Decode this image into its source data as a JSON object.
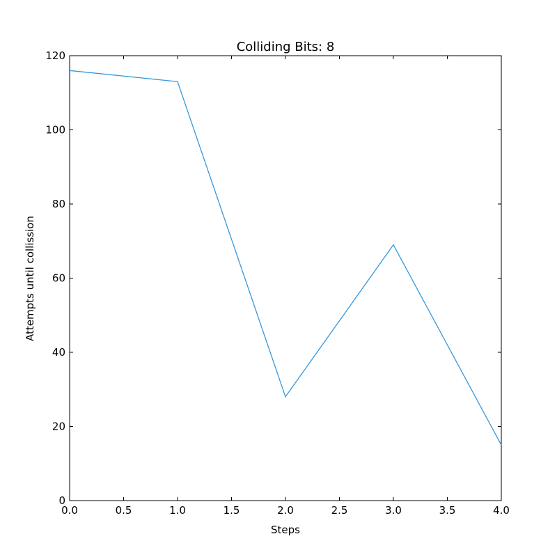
{
  "chart_data": {
    "type": "line",
    "title": "Colliding Bits: 8",
    "xlabel": "Steps",
    "ylabel": "Attempts until collission",
    "xlim": [
      0,
      4
    ],
    "ylim": [
      0,
      120
    ],
    "xticks": [
      "0.0",
      "0.5",
      "1.0",
      "1.5",
      "2.0",
      "2.5",
      "3.0",
      "3.5",
      "4.0"
    ],
    "yticks": [
      "0",
      "20",
      "40",
      "60",
      "80",
      "100",
      "120"
    ],
    "grid": false,
    "legend": "none",
    "series": [
      {
        "x": [
          0,
          1,
          2,
          3,
          4
        ],
        "y": [
          116,
          113,
          28,
          69,
          15
        ],
        "color": "#3498db"
      }
    ]
  }
}
